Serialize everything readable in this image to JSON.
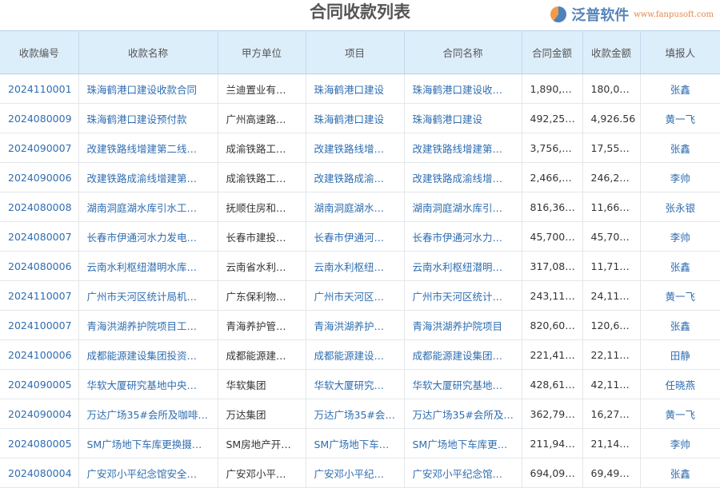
{
  "title": "合同收款列表",
  "columns": [
    "收款编号",
    "收款名称",
    "甲方单位",
    "项目",
    "合同名称",
    "合同金额",
    "收款金额",
    "填报人"
  ],
  "rows": [
    [
      "2024110001",
      "珠海鹤港口建设收款合同",
      "兰迪置业有…",
      "珠海鹤港口建设",
      "珠海鹤港口建设收…",
      "1,890,…",
      "180,0…",
      "张鑫"
    ],
    [
      "2024080009",
      "珠海鹤港口建设预付款",
      "广州高速路…",
      "珠海鹤港口建设",
      "珠海鹤港口建设",
      "492,25…",
      "4,926.56",
      "黄一飞"
    ],
    [
      "2024090007",
      "改建铁路线增建第二线…",
      "成渝铁路工…",
      "改建铁路线增…",
      "改建铁路线增建第…",
      "3,756,…",
      "17,55…",
      "张鑫"
    ],
    [
      "2024090006",
      "改建铁路成渝线增建第…",
      "成渝铁路工…",
      "改建铁路成渝…",
      "改建铁路成渝线增…",
      "2,466,…",
      "246,2…",
      "李帅"
    ],
    [
      "2024080008",
      "湖南洞庭湖水库引水工…",
      "抚顺住房和…",
      "湖南洞庭湖水…",
      "湖南洞庭湖水库引…",
      "816,36…",
      "11,66…",
      "张永银"
    ],
    [
      "2024080007",
      "长春市伊通河水力发电…",
      "长春市建投…",
      "长春市伊通河…",
      "长春市伊通河水力…",
      "45,700…",
      "45,70…",
      "李帅"
    ],
    [
      "2024080006",
      "云南水利枢纽潜明水库…",
      "云南省水利…",
      "云南水利枢纽…",
      "云南水利枢纽潜明…",
      "317,08…",
      "11,71…",
      "张鑫"
    ],
    [
      "2024110007",
      "广州市天河区统计局机…",
      "广东保利物…",
      "广州市天河区…",
      "广州市天河区统计…",
      "243,11…",
      "24,11…",
      "黄一飞"
    ],
    [
      "2024100007",
      "青海洪湖养护院项目工…",
      "青海养护管…",
      "青海洪湖养护…",
      "青海洪湖养护院项目",
      "820,60…",
      "120,6…",
      "张鑫"
    ],
    [
      "2024100006",
      "成都能源建设集团投资…",
      "成都能源建…",
      "成都能源建设…",
      "成都能源建设集团…",
      "221,41…",
      "22,11…",
      "田静"
    ],
    [
      "2024090005",
      "华软大厦研究基地中央…",
      "华软集团",
      "华软大厦研究…",
      "华软大厦研究基地…",
      "428,61…",
      "42,11…",
      "任晓燕"
    ],
    [
      "2024090004",
      "万达广场35#会所及咖啡…",
      "万达集团",
      "万达广场35#会…",
      "万达广场35#会所及…",
      "362,79…",
      "16,27…",
      "黄一飞"
    ],
    [
      "2024080005",
      "SM广场地下车库更换摄…",
      "SM房地产开…",
      "SM广场地下车…",
      "SM广场地下车库更…",
      "211,94…",
      "21,14…",
      "李帅"
    ],
    [
      "2024080004",
      "广安邓小平纪念馆安全…",
      "广安邓小平…",
      "广安邓小平纪…",
      "广安邓小平纪念馆…",
      "694,09…",
      "69,49…",
      "张鑫"
    ]
  ],
  "watermark": {
    "brand": "泛普软件",
    "url": "www.fanpusoft.com"
  },
  "colors": {
    "header_bg": "#ddeefb",
    "link": "#2f6db0"
  }
}
